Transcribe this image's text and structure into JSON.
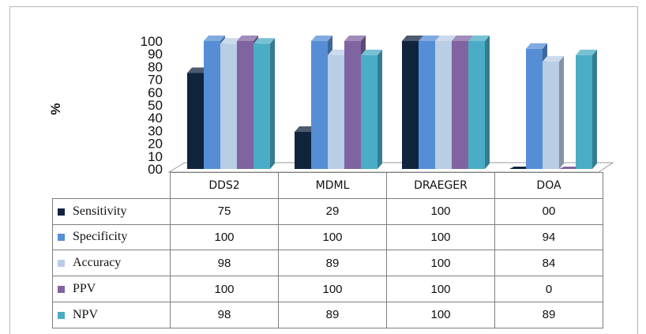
{
  "chart_data": {
    "type": "bar",
    "categories": [
      "DDS2",
      "MDML",
      "DRAEGER",
      "DOA"
    ],
    "ylabel": "%",
    "ylim": [
      0,
      100
    ],
    "yticks": [
      "00",
      "10",
      "20",
      "30",
      "40",
      "50",
      "60",
      "70",
      "80",
      "90",
      "100"
    ],
    "grid": false,
    "legend": "table",
    "series": [
      {
        "name": "Sensitivity",
        "color": "#10243e",
        "values": [
          75,
          29,
          100,
          0
        ],
        "labels": [
          "75",
          "29",
          "100",
          "00"
        ]
      },
      {
        "name": "Specificity",
        "color": "#558ed5",
        "values": [
          100,
          100,
          100,
          94
        ],
        "labels": [
          "100",
          "100",
          "100",
          "94"
        ]
      },
      {
        "name": "Accuracy",
        "color": "#b9cde5",
        "values": [
          98,
          89,
          100,
          84
        ],
        "labels": [
          "98",
          "89",
          "100",
          "84"
        ]
      },
      {
        "name": "PPV",
        "color": "#8064a2",
        "values": [
          100,
          100,
          100,
          0
        ],
        "labels": [
          "100",
          "100",
          "100",
          "0"
        ]
      },
      {
        "name": "NPV",
        "color": "#4bacc6",
        "values": [
          98,
          89,
          100,
          89
        ],
        "labels": [
          "98",
          "89",
          "100",
          "89"
        ]
      }
    ]
  }
}
